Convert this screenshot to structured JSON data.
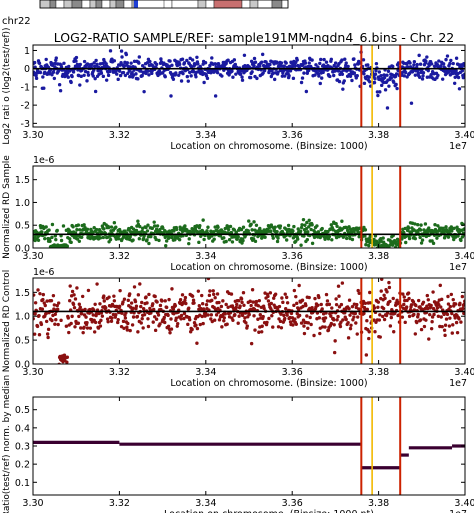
{
  "ideogram": {
    "label": "chr22",
    "colors": {
      "frame": "#000000",
      "gray": "#8a8a8a",
      "light": "#c8c8c8",
      "blue": "#1f3fd6",
      "red": "#c87070",
      "white": "#ffffff"
    }
  },
  "title": "LOG2-RATIO SAMPLE/REF: sample191MM-nqdn4_6.bins - Chr. 22",
  "markers": {
    "red_lines": [
      33760000,
      33850000
    ],
    "yellow_line": 33785000,
    "red_color": "#cc2200",
    "yellow_color": "#f2b800"
  },
  "chart_data": [
    {
      "type": "scatter",
      "xlabel": "Location on chromosome. (Binsize: 1000)",
      "ylabel": "Log2 rati o (log2(test/ref))",
      "x_ticks": [
        "3.30",
        "3.32",
        "3.34",
        "3.36",
        "3.38",
        "3.40"
      ],
      "y_ticks": [
        "1",
        "0",
        "-1",
        "-2",
        "-3"
      ],
      "x_offset": "1e7",
      "xlim": [
        33000000,
        34000000
      ],
      "ylim": [
        -3.2,
        1.3
      ],
      "color": "#1a1aa0",
      "mean_line": 0.0,
      "baseline": {
        "mean": 0.0,
        "sd": 0.3
      },
      "dip": {
        "from": 33770000,
        "to": 33850000,
        "depth": -2.7
      }
    },
    {
      "type": "scatter",
      "xlabel": "Location on chromosome. (Binsize: 1000)",
      "ylabel": "Normalized RD Sample",
      "x_ticks": [
        "3.30",
        "3.32",
        "3.34",
        "3.36",
        "3.38",
        "3.40"
      ],
      "y_ticks": [
        "1.5",
        "1.0",
        "0.5",
        "0.0"
      ],
      "y_offset": "1e-6",
      "x_offset": "1e7",
      "xlim": [
        33000000,
        34000000
      ],
      "ylim": [
        0,
        1.8
      ],
      "color": "#1c6b1c",
      "mean_line": 0.3,
      "baseline": {
        "mean": 0.33,
        "sd": 0.1
      },
      "dip": {
        "from": 33770000,
        "to": 33850000,
        "level": 0.12
      }
    },
    {
      "type": "scatter",
      "xlabel": "Location on chromosome. (Binsize: 1000)",
      "ylabel": "Normalized RD Control",
      "x_ticks": [
        "3.30",
        "3.32",
        "3.34",
        "3.36",
        "3.38",
        "3.40"
      ],
      "y_ticks": [
        "1.5",
        "1.0",
        "0.5",
        "0.0"
      ],
      "y_offset": "1e-6",
      "x_offset": "1e7",
      "xlim": [
        33000000,
        34000000
      ],
      "ylim": [
        0,
        1.8
      ],
      "color": "#8b1010",
      "mean_line": 1.1,
      "baseline": {
        "mean": 1.1,
        "sd": 0.22
      },
      "cluster": {
        "from": 33060000,
        "to": 33080000,
        "level": 0.1
      }
    },
    {
      "type": "line",
      "xlabel": "Location on chromosome. (Binsize: 1000 nt)",
      "ylabel": "Ratio(test/ref) norm. by median",
      "x_ticks": [
        "3.30",
        "3.32",
        "3.34",
        "3.36",
        "3.38",
        "3.40"
      ],
      "y_ticks": [
        "0.5",
        "0.4",
        "0.3",
        "0.2",
        "0.1"
      ],
      "x_offset": "1e7",
      "xlim": [
        33000000,
        34000000
      ],
      "ylim": [
        0.03,
        0.57
      ],
      "color": "#3a0030",
      "segments": [
        {
          "x": [
            33000000,
            33200000
          ],
          "y": 0.32
        },
        {
          "x": [
            33200000,
            33760000
          ],
          "y": 0.31
        },
        {
          "x": [
            33760000,
            33850000
          ],
          "y": 0.18
        },
        {
          "x": [
            33850000,
            33870000
          ],
          "y": 0.25
        },
        {
          "x": [
            33870000,
            33970000
          ],
          "y": 0.29
        },
        {
          "x": [
            33970000,
            34000000
          ],
          "y": 0.3
        }
      ]
    }
  ]
}
